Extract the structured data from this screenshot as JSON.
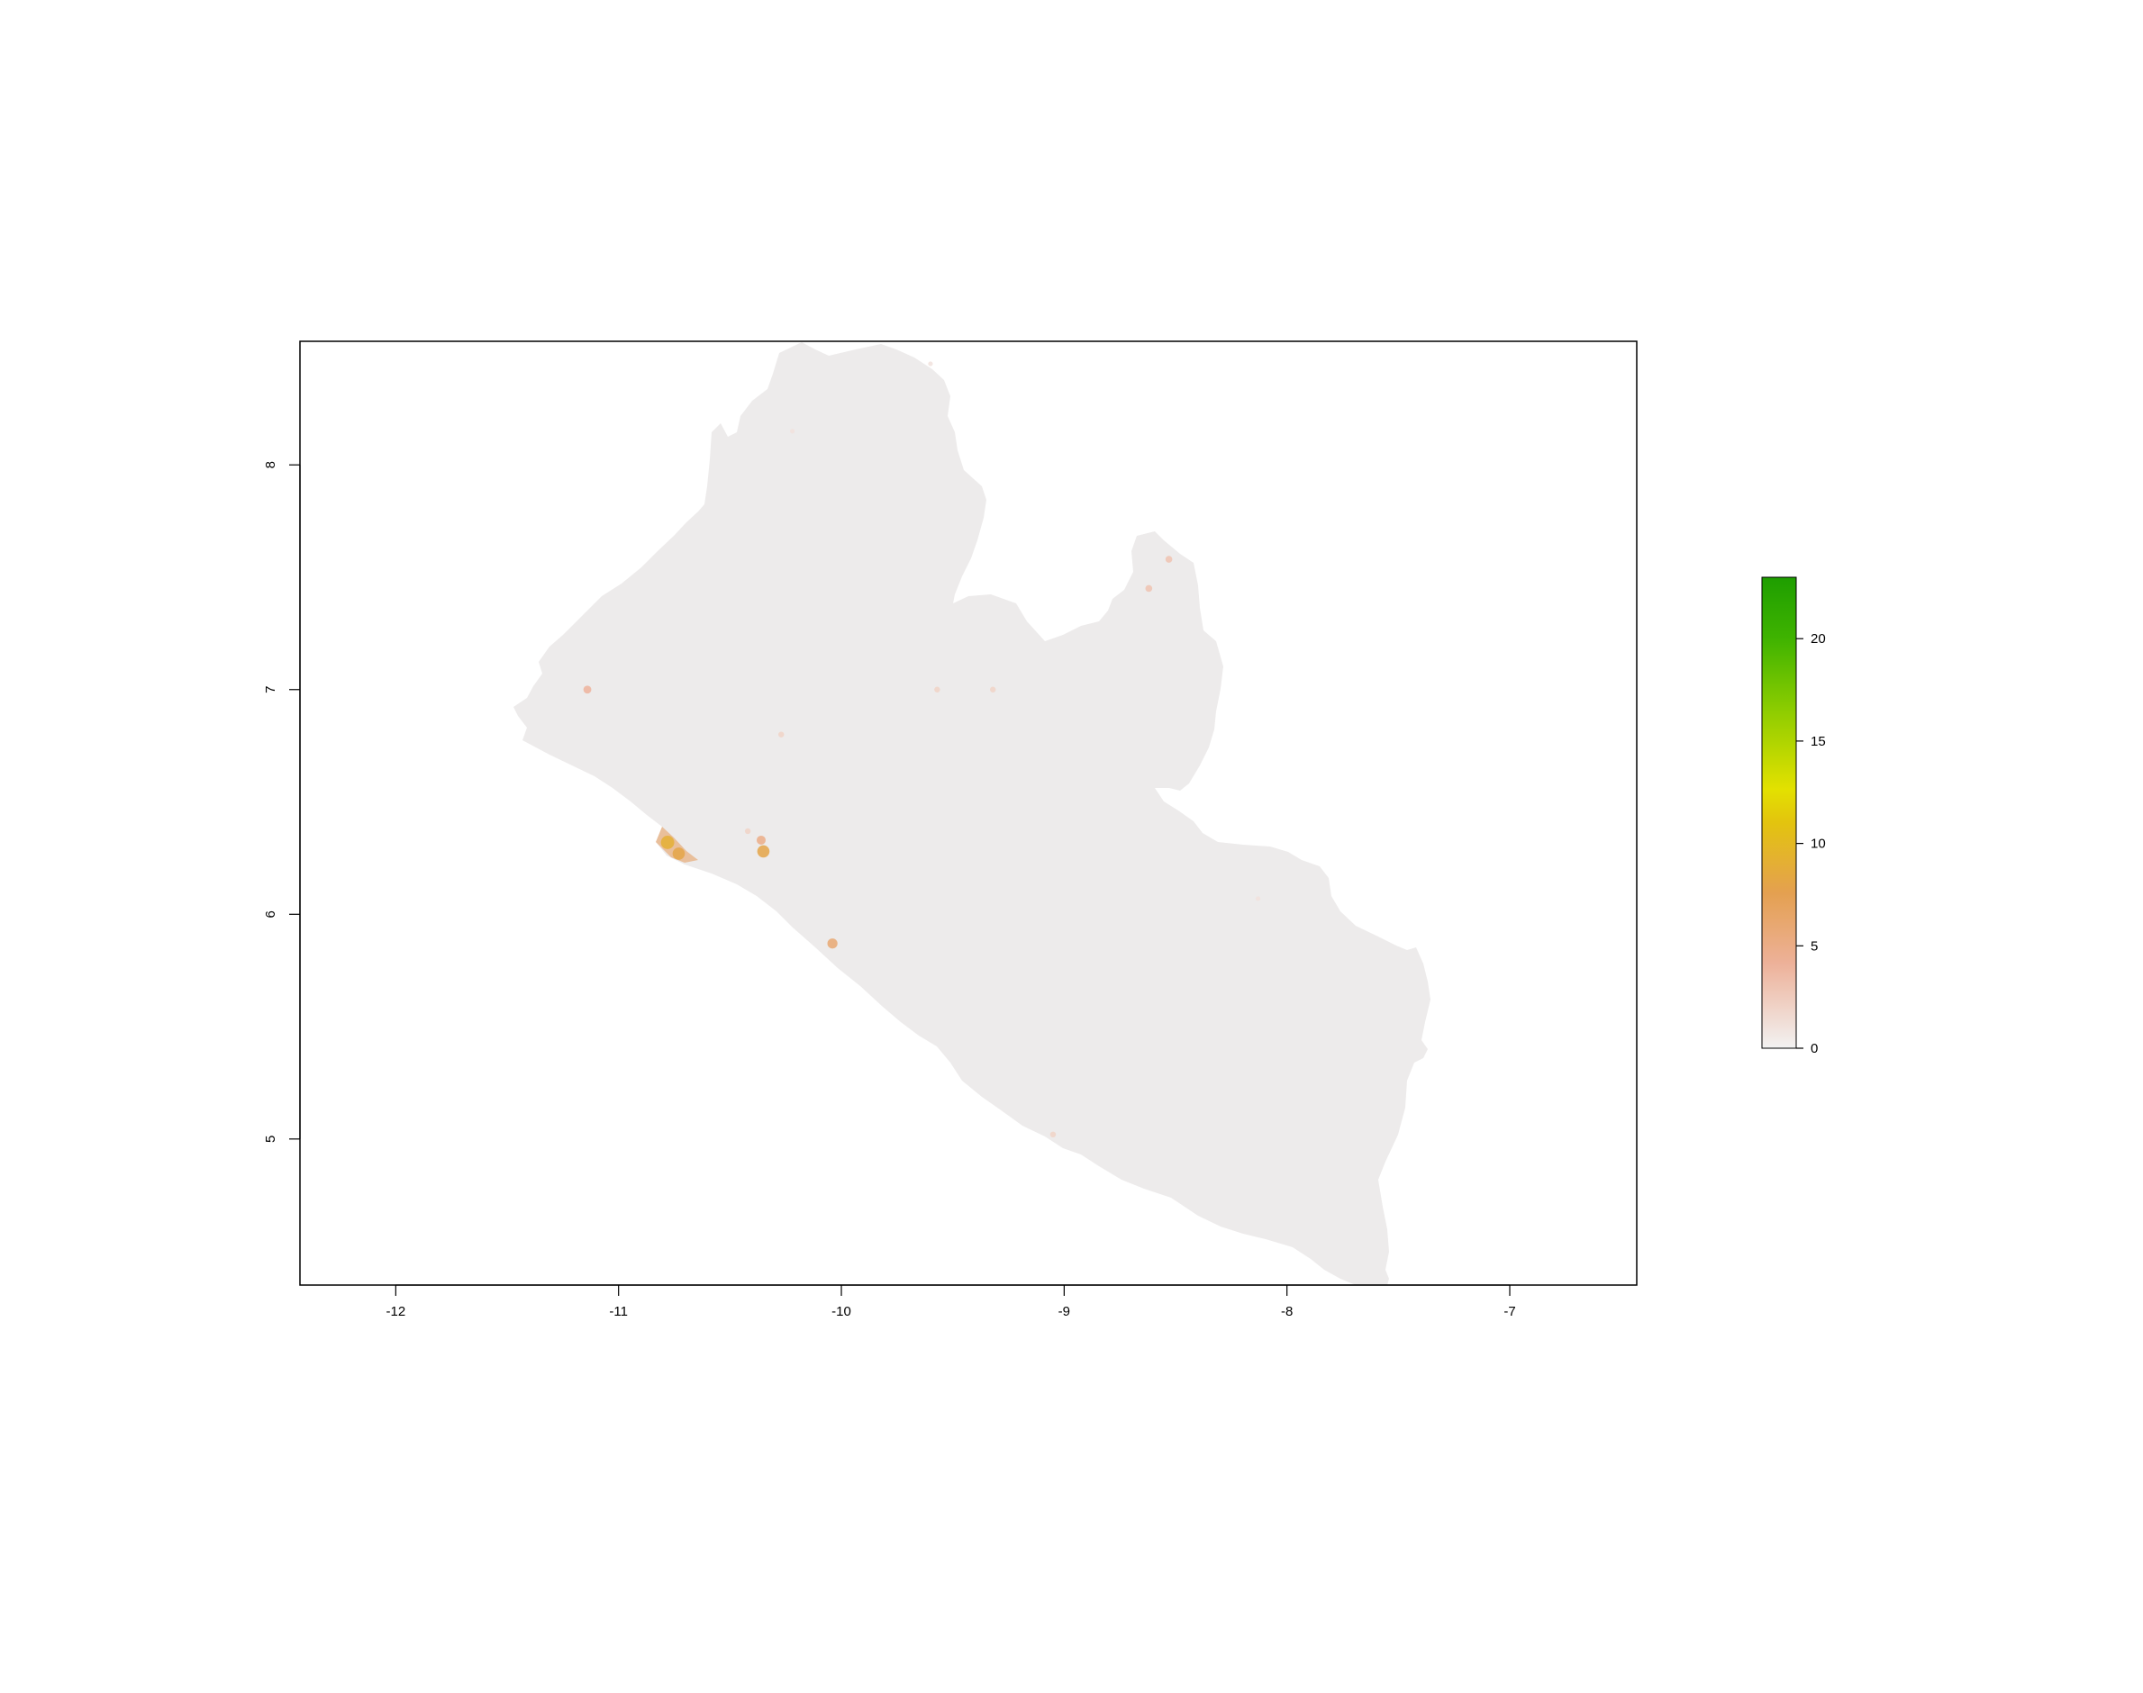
{
  "chart_data": {
    "type": "heatmap",
    "title": "",
    "xlabel": "",
    "ylabel": "",
    "xlim": [
      -12.43,
      -6.43
    ],
    "ylim": [
      4.35,
      8.55
    ],
    "x_ticks": [
      -12,
      -11,
      -10,
      -9,
      -8,
      -7
    ],
    "y_ticks": [
      5,
      6,
      7,
      8
    ],
    "x_tick_labels": [
      "-12",
      "-11",
      "-10",
      "-9",
      "-8",
      "-7"
    ],
    "y_tick_labels": [
      "5",
      "6",
      "7",
      "8"
    ],
    "grid": false,
    "region": "Liberia",
    "background_value": 0,
    "hotspots": [
      {
        "lon": -10.78,
        "lat": 6.32,
        "value": 9
      },
      {
        "lon": -10.73,
        "lat": 6.27,
        "value": 8
      },
      {
        "lon": -10.35,
        "lat": 6.28,
        "value": 8
      },
      {
        "lon": -10.36,
        "lat": 6.33,
        "value": 5
      },
      {
        "lon": -10.04,
        "lat": 5.87,
        "value": 6
      },
      {
        "lon": -11.14,
        "lat": 7.0,
        "value": 4
      },
      {
        "lon": -8.53,
        "lat": 7.58,
        "value": 3
      },
      {
        "lon": -8.62,
        "lat": 7.45,
        "value": 3
      },
      {
        "lon": -9.57,
        "lat": 7.0,
        "value": 2
      },
      {
        "lon": -9.32,
        "lat": 7.0,
        "value": 2
      },
      {
        "lon": -10.27,
        "lat": 6.8,
        "value": 2
      },
      {
        "lon": -9.05,
        "lat": 5.02,
        "value": 2
      },
      {
        "lon": -10.42,
        "lat": 6.37,
        "value": 2
      },
      {
        "lon": -8.13,
        "lat": 6.07,
        "value": 1
      },
      {
        "lon": -10.22,
        "lat": 8.15,
        "value": 1
      },
      {
        "lon": -9.6,
        "lat": 8.45,
        "value": 1
      }
    ],
    "legend": {
      "placement": "right",
      "range": [
        0,
        23
      ],
      "ticks": [
        0,
        5,
        10,
        15,
        20
      ],
      "tick_labels": [
        "0",
        "5",
        "10",
        "15",
        "20"
      ],
      "colors": [
        "#F2F2F2",
        "#ECB176",
        "#E6E600",
        "#00A600"
      ]
    }
  }
}
